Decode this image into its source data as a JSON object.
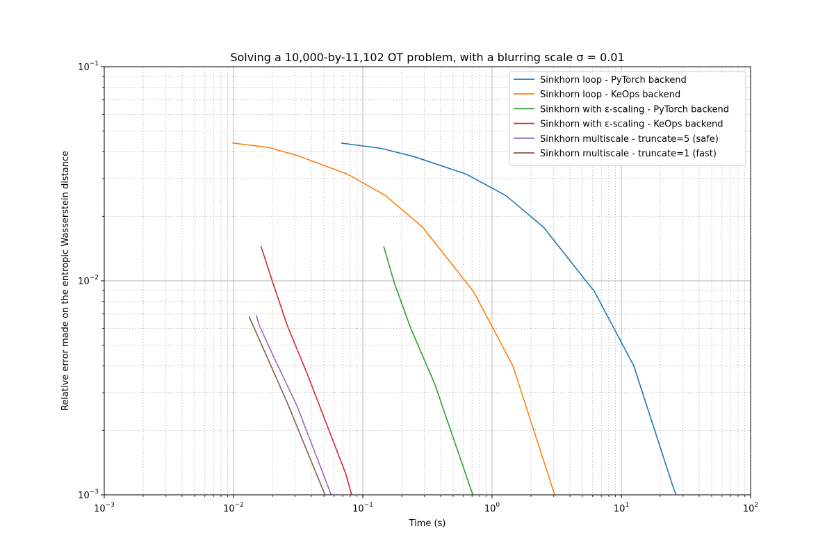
{
  "chart_data": {
    "type": "line",
    "title": "Solving a 10,000-by-11,102 OT problem, with a blurring scale σ = 0.01",
    "xlabel": "Time (s)",
    "ylabel": "Relative error made on the entropic Wasserstein distance",
    "xscale": "log",
    "yscale": "log",
    "xlim": [
      0.001,
      100
    ],
    "ylim": [
      0.001,
      0.1
    ],
    "x_ticks": [
      {
        "base": "10",
        "exp": "−3",
        "value": 0.001
      },
      {
        "base": "10",
        "exp": "−2",
        "value": 0.01
      },
      {
        "base": "10",
        "exp": "−1",
        "value": 0.1
      },
      {
        "base": "10",
        "exp": "0",
        "value": 1
      },
      {
        "base": "10",
        "exp": "1",
        "value": 10
      },
      {
        "base": "10",
        "exp": "2",
        "value": 100
      }
    ],
    "y_ticks": [
      {
        "base": "10",
        "exp": "−3",
        "value": 0.001
      },
      {
        "base": "10",
        "exp": "−2",
        "value": 0.01
      },
      {
        "base": "10",
        "exp": "−1",
        "value": 0.1
      }
    ],
    "grid": "major and minor",
    "legend_position": "top-right",
    "series": [
      {
        "name": "Sinkhorn loop - PyTorch backend",
        "color": "#1f77b4",
        "points": [
          [
            0.068,
            0.044
          ],
          [
            0.14,
            0.0415
          ],
          [
            0.25,
            0.038
          ],
          [
            0.63,
            0.0315
          ],
          [
            1.28,
            0.025
          ],
          [
            2.5,
            0.0178
          ],
          [
            6.2,
            0.0089
          ],
          [
            12.5,
            0.004
          ],
          [
            25,
            0.0011
          ],
          [
            26.5,
            0.001
          ]
        ]
      },
      {
        "name": "Sinkhorn loop - KeOps backend",
        "color": "#ff7f0e",
        "points": [
          [
            0.0098,
            0.044
          ],
          [
            0.0185,
            0.042
          ],
          [
            0.031,
            0.0385
          ],
          [
            0.076,
            0.0315
          ],
          [
            0.15,
            0.025
          ],
          [
            0.29,
            0.0178
          ],
          [
            0.72,
            0.0089
          ],
          [
            1.45,
            0.004
          ],
          [
            2.9,
            0.0011
          ],
          [
            3.05,
            0.001
          ]
        ]
      },
      {
        "name": "Sinkhorn with ε-scaling - PyTorch backend",
        "color": "#2ca02c",
        "points": [
          [
            0.145,
            0.0145
          ],
          [
            0.175,
            0.0098
          ],
          [
            0.235,
            0.006
          ],
          [
            0.36,
            0.0033
          ],
          [
            0.71,
            0.001
          ]
        ]
      },
      {
        "name": "Sinkhorn with ε-scaling - KeOps backend",
        "color": "#d62728",
        "points": [
          [
            0.0163,
            0.0145
          ],
          [
            0.0205,
            0.0095
          ],
          [
            0.026,
            0.0062
          ],
          [
            0.037,
            0.0037
          ],
          [
            0.074,
            0.00125
          ],
          [
            0.082,
            0.001
          ]
        ]
      },
      {
        "name": "Sinkhorn multiscale - truncate=5 (safe)",
        "color": "#9467bd",
        "points": [
          [
            0.015,
            0.0069
          ],
          [
            0.0158,
            0.0062
          ],
          [
            0.0205,
            0.0044
          ],
          [
            0.031,
            0.0026
          ],
          [
            0.057,
            0.001
          ]
        ]
      },
      {
        "name": "Sinkhorn multiscale - truncate=1 (fast)",
        "color": "#8c564b",
        "points": [
          [
            0.0132,
            0.0068
          ],
          [
            0.0185,
            0.0043
          ],
          [
            0.026,
            0.0027
          ],
          [
            0.051,
            0.001
          ]
        ]
      }
    ]
  }
}
